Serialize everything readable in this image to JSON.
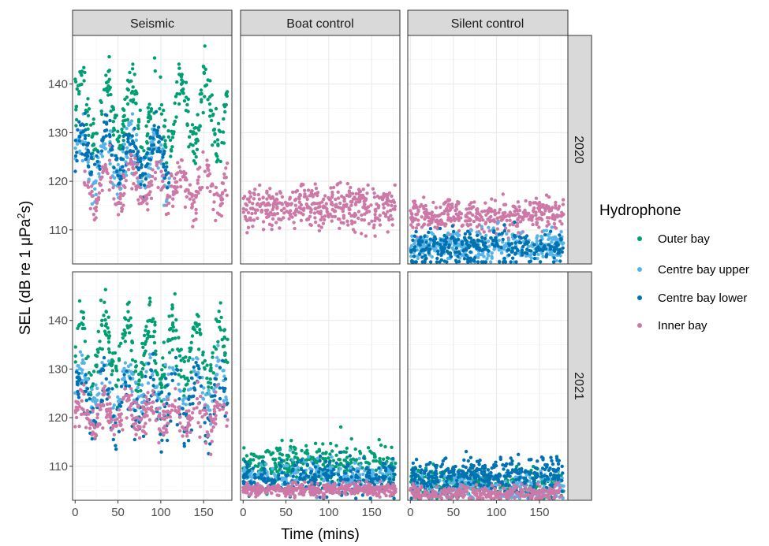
{
  "chart_data": {
    "type": "scatter",
    "xlabel": "Time (mins)",
    "ylabel_prefix": "SEL (dB re 1 μPa",
    "ylabel_sup": "2",
    "ylabel_suffix": "s)",
    "xlim": [
      -3,
      183
    ],
    "ylim": [
      103,
      150
    ],
    "x_ticks": [
      0,
      50,
      100,
      150
    ],
    "y_ticks": [
      110,
      120,
      130,
      140
    ],
    "grid": true,
    "legend_position": "right",
    "columns": [
      "Seismic",
      "Boat control",
      "Silent control"
    ],
    "rows": [
      "2020",
      "2021"
    ],
    "legend": {
      "title": "Hydrophone",
      "series": [
        {
          "name": "Outer bay",
          "color": "#009E73"
        },
        {
          "name": "Centre bay upper",
          "color": "#56B4E9"
        },
        {
          "name": "Centre bay lower",
          "color": "#0072B2"
        },
        {
          "name": "Inner bay",
          "color": "#CC79A7"
        }
      ]
    },
    "panels": [
      {
        "row": "2020",
        "column": "Seismic",
        "series": [
          {
            "name": "Outer bay",
            "x_range": [
              0,
              178
            ],
            "pattern": "oscillating",
            "base": 134,
            "amplitude": 7,
            "period": 29,
            "noise": 2.5,
            "n": 300
          },
          {
            "name": "Centre bay upper",
            "x_range": [
              0,
              110
            ],
            "pattern": "oscillating",
            "base": 124,
            "amplitude": 5,
            "period": 29,
            "noise": 2.5,
            "n": 190
          },
          {
            "name": "Centre bay lower",
            "x_range": [
              0,
              110
            ],
            "pattern": "oscillating",
            "base": 125.5,
            "amplitude": 4,
            "period": 29,
            "noise": 2,
            "n": 190
          },
          {
            "name": "Inner bay",
            "x_range": [
              10,
              178
            ],
            "pattern": "oscillating",
            "base": 119,
            "amplitude": 3.5,
            "period": 29,
            "noise": 2,
            "n": 260
          }
        ]
      },
      {
        "row": "2020",
        "column": "Boat control",
        "series": [
          {
            "name": "Inner bay",
            "x_range": [
              0,
              178
            ],
            "pattern": "flat",
            "base": 114.5,
            "noise": 2.2,
            "n": 420
          }
        ]
      },
      {
        "row": "2020",
        "column": "Silent control",
        "series": [
          {
            "name": "Inner bay",
            "x_range": [
              0,
              178
            ],
            "pattern": "flat",
            "base": 113,
            "noise": 1.6,
            "n": 380
          },
          {
            "name": "Centre bay upper",
            "x_range": [
              0,
              178
            ],
            "pattern": "flat",
            "base": 106.5,
            "noise": 1.6,
            "n": 380
          },
          {
            "name": "Centre bay lower",
            "x_range": [
              0,
              178
            ],
            "pattern": "flat",
            "base": 106.5,
            "noise": 1.8,
            "n": 300
          }
        ]
      },
      {
        "row": "2021",
        "column": "Seismic",
        "series": [
          {
            "name": "Outer bay",
            "x_range": [
              0,
              178
            ],
            "pattern": "oscillating",
            "base": 134,
            "amplitude": 6,
            "period": 27,
            "noise": 2.5,
            "n": 300
          },
          {
            "name": "Centre bay upper",
            "x_range": [
              0,
              178
            ],
            "pattern": "oscillating",
            "base": 126,
            "amplitude": 4,
            "period": 27,
            "noise": 2,
            "n": 200
          },
          {
            "name": "Centre bay lower",
            "x_range": [
              0,
              178
            ],
            "pattern": "oscillating",
            "base": 123,
            "amplitude": 5,
            "period": 27,
            "noise": 3,
            "n": 200
          },
          {
            "name": "Inner bay",
            "x_range": [
              0,
              178
            ],
            "pattern": "oscillating",
            "base": 120.5,
            "amplitude": 2.5,
            "period": 27,
            "noise": 2,
            "n": 300
          }
        ]
      },
      {
        "row": "2021",
        "column": "Boat control",
        "series": [
          {
            "name": "Outer bay",
            "x_range": [
              0,
              178
            ],
            "pattern": "flat",
            "base": 110.5,
            "noise": 2,
            "n": 320
          },
          {
            "name": "Centre bay upper",
            "x_range": [
              0,
              178
            ],
            "pattern": "flat",
            "base": 108,
            "noise": 1.6,
            "n": 260
          },
          {
            "name": "Centre bay lower",
            "x_range": [
              0,
              178
            ],
            "pattern": "flat",
            "base": 107.5,
            "noise": 1.8,
            "n": 260
          },
          {
            "name": "Inner bay",
            "x_range": [
              0,
              178
            ],
            "pattern": "flat",
            "base": 105.2,
            "noise": 0.6,
            "n": 420
          }
        ]
      },
      {
        "row": "2021",
        "column": "Silent control",
        "series": [
          {
            "name": "Outer bay",
            "x_range": [
              0,
              178
            ],
            "pattern": "flat",
            "base": 106.5,
            "noise": 1.4,
            "n": 280
          },
          {
            "name": "Centre bay upper",
            "x_range": [
              0,
              178
            ],
            "pattern": "flat",
            "base": 106,
            "noise": 1.4,
            "n": 300
          },
          {
            "name": "Centre bay lower",
            "x_range": [
              0,
              178
            ],
            "pattern": "flat",
            "base": 108,
            "noise": 1.8,
            "n": 380
          },
          {
            "name": "Inner bay",
            "x_range": [
              0,
              178
            ],
            "pattern": "flat",
            "base": 104.5,
            "noise": 0.8,
            "n": 300
          }
        ]
      }
    ]
  }
}
